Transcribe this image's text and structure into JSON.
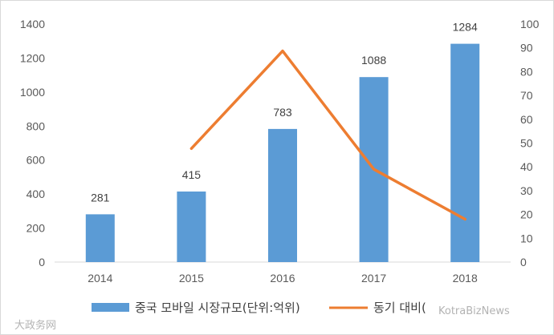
{
  "chart_data": {
    "type": "bar",
    "categories": [
      "2014",
      "2015",
      "2016",
      "2017",
      "2018"
    ],
    "ylim": [
      0,
      1400
    ],
    "y_ticks": [
      0,
      200,
      400,
      600,
      800,
      1000,
      1200,
      1400
    ],
    "y2lim": [
      0,
      100
    ],
    "y2_ticks": [
      0,
      10,
      20,
      30,
      40,
      50,
      60,
      70,
      80,
      90,
      100
    ],
    "grid": false,
    "legend_position": "bottom",
    "series": [
      {
        "name": "중국 모바일 시장규모(단위:억위)",
        "type": "bar",
        "axis": "left",
        "color": "#5b9bd5",
        "values": [
          281,
          415,
          783,
          1088,
          1284
        ],
        "data_labels": [
          "281",
          "415",
          "783",
          "1088",
          "1284"
        ]
      },
      {
        "name": "동기 대비(",
        "type": "line",
        "axis": "right",
        "color": "#ed7d31",
        "values": [
          null,
          47.7,
          88.7,
          39.0,
          18.0
        ]
      }
    ]
  },
  "watermarks": {
    "left": "大政务网",
    "right": "KotraBizNews"
  }
}
